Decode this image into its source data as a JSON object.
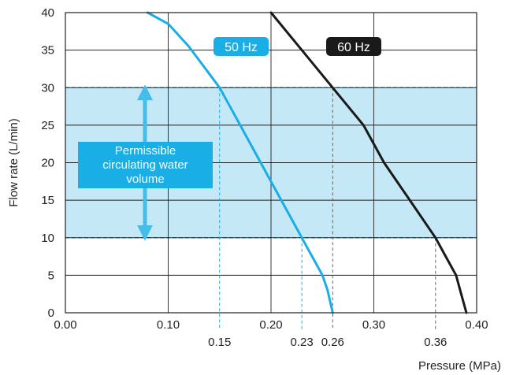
{
  "chart_data": {
    "type": "line",
    "xlabel": "Pressure (MPa)",
    "ylabel": "Flow rate (L/min)",
    "xlim": [
      0,
      0.4
    ],
    "ylim": [
      0,
      40
    ],
    "x_ticks": [
      "0.00",
      "0.10",
      "0.20",
      "0.30",
      "0.40"
    ],
    "x_tick_values": [
      0,
      0.1,
      0.2,
      0.3,
      0.4
    ],
    "y_ticks": [
      "0",
      "5",
      "10",
      "15",
      "20",
      "25",
      "30",
      "35",
      "40"
    ],
    "y_tick_values": [
      0,
      5,
      10,
      15,
      20,
      25,
      30,
      35,
      40
    ],
    "grid": true,
    "series": [
      {
        "name": "50 Hz",
        "color": "#19aee6",
        "label_style": "filled",
        "points": [
          [
            0.08,
            40
          ],
          [
            0.1,
            38.5
          ],
          [
            0.12,
            35.5
          ],
          [
            0.15,
            30
          ],
          [
            0.17,
            25
          ],
          [
            0.19,
            20
          ],
          [
            0.21,
            15
          ],
          [
            0.23,
            10
          ],
          [
            0.24,
            7.5
          ],
          [
            0.25,
            5
          ],
          [
            0.255,
            3
          ],
          [
            0.26,
            0
          ]
        ]
      },
      {
        "name": "60 Hz",
        "color": "#1a1a1a",
        "label_style": "filled",
        "points": [
          [
            0.2,
            40
          ],
          [
            0.23,
            35
          ],
          [
            0.26,
            30
          ],
          [
            0.29,
            25
          ],
          [
            0.31,
            20
          ],
          [
            0.335,
            15
          ],
          [
            0.36,
            10
          ],
          [
            0.37,
            7.5
          ],
          [
            0.38,
            5
          ],
          [
            0.385,
            2.5
          ],
          [
            0.39,
            0
          ]
        ]
      }
    ],
    "band": {
      "y_from": 10,
      "y_to": 30,
      "color": "#c5e8f7",
      "border_color": "#19aee6"
    },
    "band_label": [
      "Permissible",
      "circulating water",
      "volume"
    ],
    "band_label_color": "#19aee6",
    "reference_lines": [
      {
        "x": 0.15,
        "y": 30,
        "label": "0.15",
        "color": "#19aee6"
      },
      {
        "x": 0.23,
        "y": 10,
        "label": "0.23",
        "color": "#19aee6"
      },
      {
        "x": 0.26,
        "y": 30,
        "label": "0.26",
        "color": "#666666"
      },
      {
        "x": 0.36,
        "y": 10,
        "label": "0.36",
        "color": "#666666"
      }
    ]
  }
}
